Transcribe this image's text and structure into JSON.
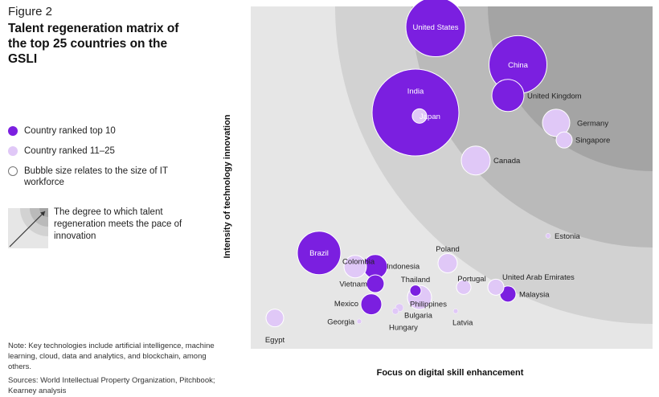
{
  "figure_label": "Figure 2",
  "title": "Talent regeneration matrix of the top 25 countries on the GSLI",
  "legend": {
    "top10": "Country ranked top 10",
    "rank11_25": "Country ranked 11–25",
    "size_note": "Bubble size relates to the size of IT workforce",
    "gradient_note": "The degree to which talent regeneration meets the pace of innovation"
  },
  "note": "Note: Key technologies include artificial intelligence, machine learning, cloud, data and analytics, and blockchain, among others.",
  "sources": "Sources: World Intellectual Property Organization, Pitchbook; Kearney analysis",
  "colors": {
    "top10": "#7b1fe0",
    "rank11_25": "#e0c8f7",
    "band_outer": "#e6e6e6",
    "band_2": "#d2d2d2",
    "band_3": "#bababa",
    "band_inner": "#a4a4a4"
  },
  "chart_data": {
    "type": "scatter",
    "title": "Talent regeneration matrix of the top 25 countries on the GSLI",
    "xlabel": "Focus on digital skill enhancement",
    "ylabel": "Intensity of technology innovation",
    "xlim": [
      0,
      100
    ],
    "ylim": [
      0,
      100
    ],
    "grid": false,
    "legend_position": "left",
    "series": [
      {
        "name": "Country ranked top 10",
        "points": [
          {
            "label": "United States",
            "x": 46,
            "y": 94,
            "size": 37
          },
          {
            "label": "China",
            "x": 66.5,
            "y": 83,
            "size": 36
          },
          {
            "label": "India",
            "x": 41,
            "y": 69,
            "size": 54
          },
          {
            "label": "United Kingdom",
            "x": 64,
            "y": 74,
            "size": 20
          },
          {
            "label": "Brazil",
            "x": 17,
            "y": 28,
            "size": 27
          },
          {
            "label": "Indonesia",
            "x": 31,
            "y": 24,
            "size": 15
          },
          {
            "label": "Vietnam",
            "x": 31,
            "y": 19,
            "size": 11
          },
          {
            "label": "Mexico",
            "x": 30,
            "y": 13,
            "size": 13
          },
          {
            "label": "Thailand",
            "x": 41,
            "y": 17,
            "size": 7
          },
          {
            "label": "Malaysia",
            "x": 64,
            "y": 16,
            "size": 10
          }
        ]
      },
      {
        "name": "Country ranked 11–25",
        "points": [
          {
            "label": "Japan",
            "x": 42,
            "y": 68,
            "size": 9
          },
          {
            "label": "Germany",
            "x": 76,
            "y": 66,
            "size": 17
          },
          {
            "label": "Singapore",
            "x": 78,
            "y": 61,
            "size": 10
          },
          {
            "label": "Canada",
            "x": 56,
            "y": 55,
            "size": 18
          },
          {
            "label": "Estonia",
            "x": 74,
            "y": 33,
            "size": 3
          },
          {
            "label": "Poland",
            "x": 49,
            "y": 25,
            "size": 12
          },
          {
            "label": "Colombia",
            "x": 26,
            "y": 24,
            "size": 14
          },
          {
            "label": "Portugal",
            "x": 53,
            "y": 18,
            "size": 9
          },
          {
            "label": "United Arab Emirates",
            "x": 61,
            "y": 18,
            "size": 10
          },
          {
            "label": "Philippines",
            "x": 42,
            "y": 15,
            "size": 15
          },
          {
            "label": "Bulgaria",
            "x": 37,
            "y": 12,
            "size": 5
          },
          {
            "label": "Hungary",
            "x": 36,
            "y": 11,
            "size": 4
          },
          {
            "label": "Latvia",
            "x": 51,
            "y": 11,
            "size": 3
          },
          {
            "label": "Georgia",
            "x": 27,
            "y": 8,
            "size": 3
          },
          {
            "label": "Egypt",
            "x": 6,
            "y": 9,
            "size": 11
          }
        ]
      }
    ]
  }
}
